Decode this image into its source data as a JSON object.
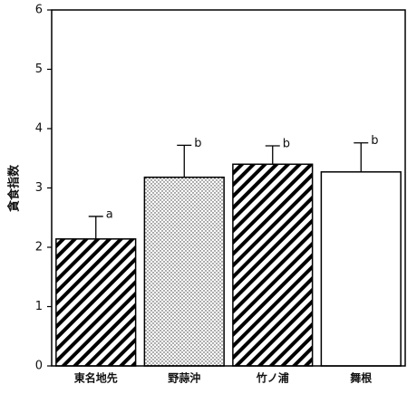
{
  "chart_data": {
    "type": "bar",
    "y_label": "貪食指数",
    "categories": [
      "東名地先",
      "野蒜沖",
      "竹ノ浦",
      "舞根"
    ],
    "values": [
      2.14,
      3.18,
      3.4,
      3.27
    ],
    "errors": [
      0.38,
      0.54,
      0.31,
      0.49
    ],
    "significance": [
      "a",
      "b",
      "b",
      "b"
    ],
    "patterns": [
      "hatch",
      "dots",
      "hatch",
      "none"
    ],
    "color": "#000000",
    "ylim": [
      0,
      6
    ],
    "yticks": [
      0,
      1,
      2,
      3,
      4,
      5,
      6
    ],
    "grid": false
  }
}
